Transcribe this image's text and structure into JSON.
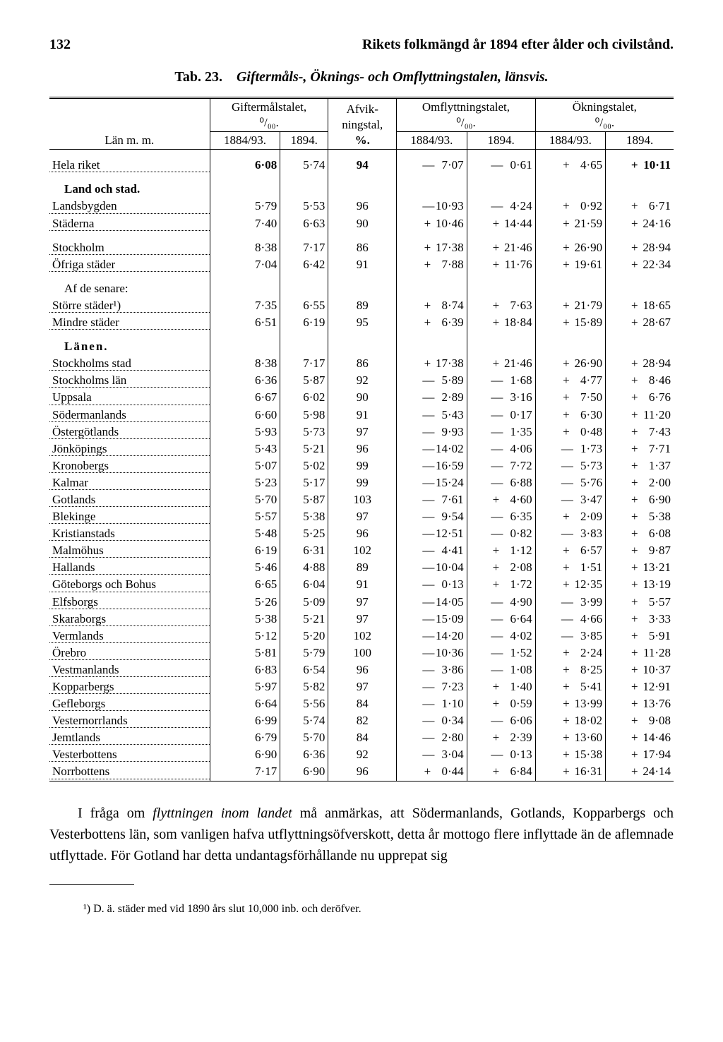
{
  "page_number": "132",
  "running_head": "Rikets folkmängd år 1894 efter ålder och civilstånd.",
  "tab_number": "Tab. 23.",
  "tab_title": "Giftermåls-, Öknings- och Omflyttningstalen, länsvis.",
  "header": {
    "lan": "Län m. m.",
    "gifter": "Giftermålstalet,\n⁰/₀₀.",
    "afvik": "Afvik-\nningstal,\n%.",
    "omflytt": "Omflyttningstalet,\n⁰/₀₀.",
    "okning": "Ökningstalet,\n⁰/₀₀.",
    "y1": "1884/93.",
    "y2": "1894."
  },
  "sections": {
    "land_stad": "Land och stad.",
    "af_de": "Af de senare:",
    "lanen": "Länen."
  },
  "rows": [
    {
      "k": "hela",
      "label": "Hela riket",
      "g1": "6·08",
      "g2": "5·74",
      "a": "94",
      "o1s": "—",
      "o1": "7·07",
      "o2s": "—",
      "o2": "0·61",
      "k1s": "+",
      "k1": "4·65",
      "k2s": "+",
      "k2": "10·11",
      "bold": true
    },
    {
      "k": "land",
      "label": "Landsbygden",
      "g1": "5·79",
      "g2": "5·53",
      "a": "96",
      "o1s": "—",
      "o1": "10·93",
      "o2s": "—",
      "o2": "4·24",
      "k1s": "+",
      "k1": "0·92",
      "k2s": "+",
      "k2": "6·71"
    },
    {
      "k": "stad",
      "label": "Städerna",
      "g1": "7·40",
      "g2": "6·63",
      "a": "90",
      "o1s": "+",
      "o1": "10·46",
      "o2s": "+",
      "o2": "14·44",
      "k1s": "+",
      "k1": "21·59",
      "k2s": "+",
      "k2": "24·16"
    },
    {
      "k": "sthm",
      "label": "Stockholm",
      "g1": "8·38",
      "g2": "7·17",
      "a": "86",
      "o1s": "+",
      "o1": "17·38",
      "o2s": "+",
      "o2": "21·46",
      "k1s": "+",
      "k1": "26·90",
      "k2s": "+",
      "k2": "28·94"
    },
    {
      "k": "ofriga",
      "label": "Öfriga städer",
      "g1": "7·04",
      "g2": "6·42",
      "a": "91",
      "o1s": "+",
      "o1": "7·88",
      "o2s": "+",
      "o2": "11·76",
      "k1s": "+",
      "k1": "19·61",
      "k2s": "+",
      "k2": "22·34"
    },
    {
      "k": "storre",
      "label": "Större städer¹)",
      "g1": "7·35",
      "g2": "6·55",
      "a": "89",
      "o1s": "+",
      "o1": "8·74",
      "o2s": "+",
      "o2": "7·63",
      "k1s": "+",
      "k1": "21·79",
      "k2s": "+",
      "k2": "18·65"
    },
    {
      "k": "mindre",
      "label": "Mindre städer",
      "g1": "6·51",
      "g2": "6·19",
      "a": "95",
      "o1s": "+",
      "o1": "6·39",
      "o2s": "+",
      "o2": "18·84",
      "k1s": "+",
      "k1": "15·89",
      "k2s": "+",
      "k2": "28·67"
    },
    {
      "k": "l1",
      "label": "Stockholms stad",
      "g1": "8·38",
      "g2": "7·17",
      "a": "86",
      "o1s": "+",
      "o1": "17·38",
      "o2s": "+",
      "o2": "21·46",
      "k1s": "+",
      "k1": "26·90",
      "k2s": "+",
      "k2": "28·94"
    },
    {
      "k": "l2",
      "label": "Stockholms län",
      "g1": "6·36",
      "g2": "5·87",
      "a": "92",
      "o1s": "—",
      "o1": "5·89",
      "o2s": "—",
      "o2": "1·68",
      "k1s": "+",
      "k1": "4·77",
      "k2s": "+",
      "k2": "8·46"
    },
    {
      "k": "l3",
      "label": "Uppsala",
      "g1": "6·67",
      "g2": "6·02",
      "a": "90",
      "o1s": "—",
      "o1": "2·89",
      "o2s": "—",
      "o2": "3·16",
      "k1s": "+",
      "k1": "7·50",
      "k2s": "+",
      "k2": "6·76"
    },
    {
      "k": "l4",
      "label": "Södermanlands",
      "g1": "6·60",
      "g2": "5·98",
      "a": "91",
      "o1s": "—",
      "o1": "5·43",
      "o2s": "—",
      "o2": "0·17",
      "k1s": "+",
      "k1": "6·30",
      "k2s": "+",
      "k2": "11·20"
    },
    {
      "k": "l5",
      "label": "Östergötlands",
      "g1": "5·93",
      "g2": "5·73",
      "a": "97",
      "o1s": "—",
      "o1": "9·93",
      "o2s": "—",
      "o2": "1·35",
      "k1s": "+",
      "k1": "0·48",
      "k2s": "+",
      "k2": "7·43"
    },
    {
      "k": "l6",
      "label": "Jönköpings",
      "g1": "5·43",
      "g2": "5·21",
      "a": "96",
      "o1s": "—",
      "o1": "14·02",
      "o2s": "—",
      "o2": "4·06",
      "k1s": "—",
      "k1": "1·73",
      "k2s": "+",
      "k2": "7·71"
    },
    {
      "k": "l7",
      "label": "Kronobergs",
      "g1": "5·07",
      "g2": "5·02",
      "a": "99",
      "o1s": "—",
      "o1": "16·59",
      "o2s": "—",
      "o2": "7·72",
      "k1s": "—",
      "k1": "5·73",
      "k2s": "+",
      "k2": "1·37"
    },
    {
      "k": "l8",
      "label": "Kalmar",
      "g1": "5·23",
      "g2": "5·17",
      "a": "99",
      "o1s": "—",
      "o1": "15·24",
      "o2s": "—",
      "o2": "6·88",
      "k1s": "—",
      "k1": "5·76",
      "k2s": "+",
      "k2": "2·00"
    },
    {
      "k": "l9",
      "label": "Gotlands",
      "g1": "5·70",
      "g2": "5·87",
      "a": "103",
      "o1s": "—",
      "o1": "7·61",
      "o2s": "+",
      "o2": "4·60",
      "k1s": "—",
      "k1": "3·47",
      "k2s": "+",
      "k2": "6·90"
    },
    {
      "k": "l10",
      "label": "Blekinge",
      "g1": "5·57",
      "g2": "5·38",
      "a": "97",
      "o1s": "—",
      "o1": "9·54",
      "o2s": "—",
      "o2": "6·35",
      "k1s": "+",
      "k1": "2·09",
      "k2s": "+",
      "k2": "5·38"
    },
    {
      "k": "l11",
      "label": "Kristianstads",
      "g1": "5·48",
      "g2": "5·25",
      "a": "96",
      "o1s": "—",
      "o1": "12·51",
      "o2s": "—",
      "o2": "0·82",
      "k1s": "—",
      "k1": "3·83",
      "k2s": "+",
      "k2": "6·08"
    },
    {
      "k": "l12",
      "label": "Malmöhus",
      "g1": "6·19",
      "g2": "6·31",
      "a": "102",
      "o1s": "—",
      "o1": "4·41",
      "o2s": "+",
      "o2": "1·12",
      "k1s": "+",
      "k1": "6·57",
      "k2s": "+",
      "k2": "9·87"
    },
    {
      "k": "l13",
      "label": "Hallands",
      "g1": "5·46",
      "g2": "4·88",
      "a": "89",
      "o1s": "—",
      "o1": "10·04",
      "o2s": "+",
      "o2": "2·08",
      "k1s": "+",
      "k1": "1·51",
      "k2s": "+",
      "k2": "13·21"
    },
    {
      "k": "l14",
      "label": "Göteborgs och Bohus",
      "g1": "6·65",
      "g2": "6·04",
      "a": "91",
      "o1s": "—",
      "o1": "0·13",
      "o2s": "+",
      "o2": "1·72",
      "k1s": "+",
      "k1": "12·35",
      "k2s": "+",
      "k2": "13·19"
    },
    {
      "k": "l15",
      "label": "Elfsborgs",
      "g1": "5·26",
      "g2": "5·09",
      "a": "97",
      "o1s": "—",
      "o1": "14·05",
      "o2s": "—",
      "o2": "4·90",
      "k1s": "—",
      "k1": "3·99",
      "k2s": "+",
      "k2": "5·57"
    },
    {
      "k": "l16",
      "label": "Skaraborgs",
      "g1": "5·38",
      "g2": "5·21",
      "a": "97",
      "o1s": "—",
      "o1": "15·09",
      "o2s": "—",
      "o2": "6·64",
      "k1s": "—",
      "k1": "4·66",
      "k2s": "+",
      "k2": "3·33"
    },
    {
      "k": "l17",
      "label": "Vermlands",
      "g1": "5·12",
      "g2": "5·20",
      "a": "102",
      "o1s": "—",
      "o1": "14·20",
      "o2s": "—",
      "o2": "4·02",
      "k1s": "—",
      "k1": "3·85",
      "k2s": "+",
      "k2": "5·91"
    },
    {
      "k": "l18",
      "label": "Örebro",
      "g1": "5·81",
      "g2": "5·79",
      "a": "100",
      "o1s": "—",
      "o1": "10·36",
      "o2s": "—",
      "o2": "1·52",
      "k1s": "+",
      "k1": "2·24",
      "k2s": "+",
      "k2": "11·28"
    },
    {
      "k": "l19",
      "label": "Vestmanlands",
      "g1": "6·83",
      "g2": "6·54",
      "a": "96",
      "o1s": "—",
      "o1": "3·86",
      "o2s": "—",
      "o2": "1·08",
      "k1s": "+",
      "k1": "8·25",
      "k2s": "+",
      "k2": "10·37"
    },
    {
      "k": "l20",
      "label": "Kopparbergs",
      "g1": "5·97",
      "g2": "5·82",
      "a": "97",
      "o1s": "—",
      "o1": "7·23",
      "o2s": "+",
      "o2": "1·40",
      "k1s": "+",
      "k1": "5·41",
      "k2s": "+",
      "k2": "12·91"
    },
    {
      "k": "l21",
      "label": "Gefleborgs",
      "g1": "6·64",
      "g2": "5·56",
      "a": "84",
      "o1s": "—",
      "o1": "1·10",
      "o2s": "+",
      "o2": "0·59",
      "k1s": "+",
      "k1": "13·99",
      "k2s": "+",
      "k2": "13·76"
    },
    {
      "k": "l22",
      "label": "Vesternorrlands",
      "g1": "6·99",
      "g2": "5·74",
      "a": "82",
      "o1s": "—",
      "o1": "0·34",
      "o2s": "—",
      "o2": "6·06",
      "k1s": "+",
      "k1": "18·02",
      "k2s": "+",
      "k2": "9·08"
    },
    {
      "k": "l23",
      "label": "Jemtlands",
      "g1": "6·79",
      "g2": "5·70",
      "a": "84",
      "o1s": "—",
      "o1": "2·80",
      "o2s": "+",
      "o2": "2·39",
      "k1s": "+",
      "k1": "13·60",
      "k2s": "+",
      "k2": "14·46"
    },
    {
      "k": "l24",
      "label": "Vesterbottens",
      "g1": "6·90",
      "g2": "6·36",
      "a": "92",
      "o1s": "—",
      "o1": "3·04",
      "o2s": "—",
      "o2": "0·13",
      "k1s": "+",
      "k1": "15·38",
      "k2s": "+",
      "k2": "17·94"
    },
    {
      "k": "l25",
      "label": "Norrbottens",
      "g1": "7·17",
      "g2": "6·90",
      "a": "96",
      "o1s": "+",
      "o1": "0·44",
      "o2s": "+",
      "o2": "6·84",
      "k1s": "+",
      "k1": "16·31",
      "k2s": "+",
      "k2": "24·14"
    }
  ],
  "body_text": "I fråga om flyttningen inom landet må anmärkas, att Södermanlands, Gotlands, Kopparbergs och Vesterbottens län, som vanligen hafva ut­flyttningsöfverskott, detta år mottogo flere inflyttade än de aflemnade ut­flyttade. För Gotland har detta undantagsförhållande nu upprepat sig",
  "body_italic": "flyttningen inom landet",
  "footnote": "¹) D. ä. städer med vid 1890 års slut 10,000 inb. och deröfver."
}
